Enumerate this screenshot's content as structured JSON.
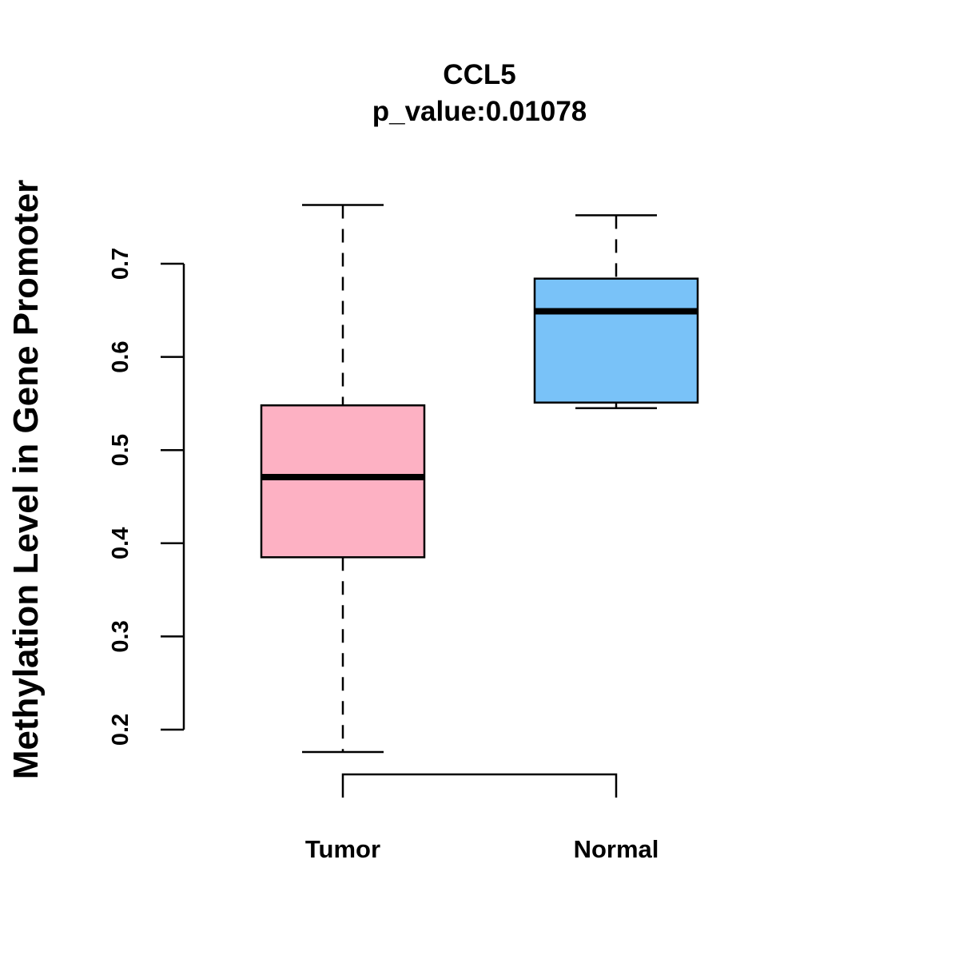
{
  "chart_data": {
    "type": "boxplot",
    "title": "CCL5",
    "subtitle": "p_value:0.01078",
    "xlabel": "",
    "ylabel": "Methylation Level in Gene Promoter",
    "ylim": [
      0.15,
      0.78
    ],
    "yticks": [
      0.2,
      0.3,
      0.4,
      0.5,
      0.6,
      0.7
    ],
    "ytick_labels": [
      "0.2",
      "0.3",
      "0.4",
      "0.5",
      "0.6",
      "0.7"
    ],
    "grid": false,
    "categories": [
      "Tumor",
      "Normal"
    ],
    "boxes": [
      {
        "name": "Tumor",
        "whisker_low": 0.176,
        "q1": 0.385,
        "median": 0.471,
        "q3": 0.548,
        "whisker_high": 0.763,
        "color": "#FDB1C3"
      },
      {
        "name": "Normal",
        "whisker_low": 0.545,
        "q1": 0.551,
        "median": 0.649,
        "q3": 0.684,
        "whisker_high": 0.752,
        "color": "#79C2F8"
      }
    ],
    "annotations": [
      {
        "type": "bracket",
        "between": [
          "Tumor",
          "Normal"
        ],
        "label": ""
      }
    ]
  }
}
